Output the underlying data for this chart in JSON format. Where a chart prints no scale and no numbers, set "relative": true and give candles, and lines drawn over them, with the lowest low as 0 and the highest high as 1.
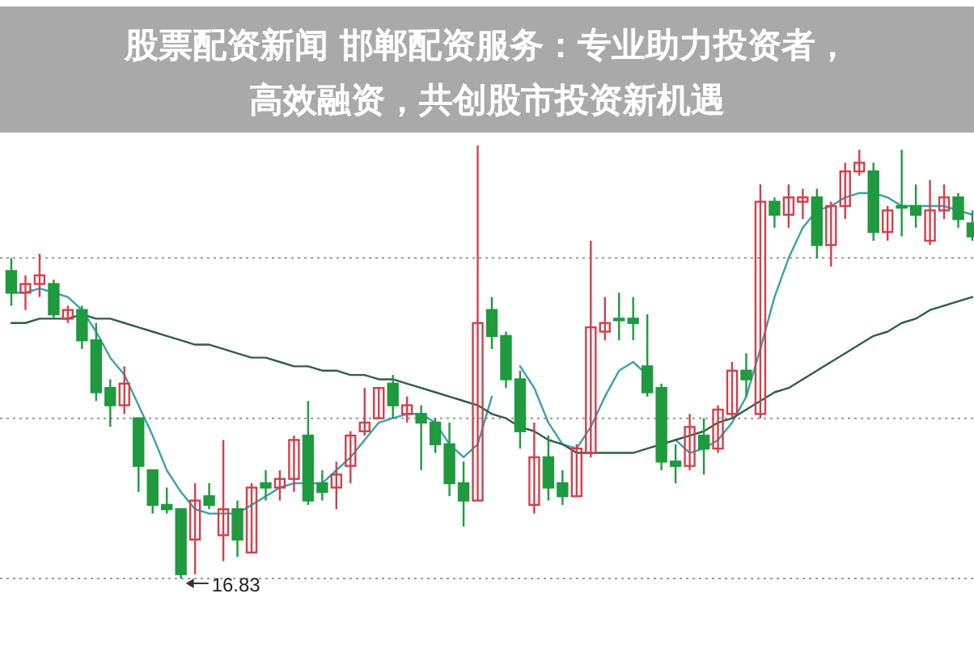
{
  "chart_data": {
    "type": "candlestick",
    "title": "股票配资新闻 邯郸配资服务：专业助力投资者，高效融资，共创股市投资新机遇",
    "relative": true,
    "ref_lines": [
      {
        "axis": "y",
        "value": 0,
        "color": "#999999",
        "line_style": "dotted"
      },
      {
        "axis": "y",
        "value": 0.37,
        "color": "#999999",
        "line_style": "dotted"
      },
      {
        "axis": "y",
        "value": 0.74,
        "color": "#999999",
        "line_style": "dotted"
      }
    ],
    "categories": [
      null,
      null,
      null,
      null,
      null,
      null,
      null,
      null,
      null,
      null,
      null,
      null,
      null,
      null,
      null,
      null,
      null,
      null,
      null,
      null,
      null,
      null,
      null,
      null,
      null,
      null,
      null,
      null,
      null,
      null,
      null,
      null,
      null,
      null,
      null,
      null,
      null,
      null,
      null,
      null,
      null,
      null,
      null,
      null,
      null,
      null,
      null,
      null,
      null,
      null,
      null,
      null,
      null,
      null,
      null,
      null,
      null,
      null,
      null,
      null,
      null,
      null,
      null,
      null,
      null,
      null,
      null,
      null,
      null
    ],
    "ohlc": [
      [
        0.71,
        0.74,
        0.63,
        0.66
      ],
      [
        0.66,
        0.7,
        0.62,
        0.68
      ],
      [
        0.68,
        0.75,
        0.65,
        0.7
      ],
      [
        0.68,
        0.69,
        0.6,
        0.61
      ],
      [
        0.6,
        0.63,
        0.59,
        0.62
      ],
      [
        0.62,
        0.63,
        0.53,
        0.55
      ],
      [
        0.55,
        0.59,
        0.41,
        0.43
      ],
      [
        0.44,
        0.46,
        0.35,
        0.4
      ],
      [
        0.4,
        0.49,
        0.38,
        0.45
      ],
      [
        0.37,
        0.37,
        0.2,
        0.26
      ],
      [
        0.25,
        0.25,
        0.15,
        0.17
      ],
      [
        0.17,
        0.21,
        0.15,
        0.16
      ],
      [
        0.16,
        0.16,
        0,
        0.01
      ],
      [
        0.09,
        0.22,
        0.01,
        0.18
      ],
      [
        0.19,
        0.22,
        0.16,
        0.17
      ],
      [
        0.1,
        0.32,
        0.04,
        0.16
      ],
      [
        0.16,
        0.18,
        0.05,
        0.09
      ],
      [
        0.06,
        0.22,
        0.06,
        0.21
      ],
      [
        0.22,
        0.25,
        0.18,
        0.21
      ],
      [
        0.21,
        0.25,
        0.18,
        0.23
      ],
      [
        0.23,
        0.33,
        0.2,
        0.32
      ],
      [
        0.33,
        0.41,
        0.17,
        0.18
      ],
      [
        0.22,
        0.25,
        0.18,
        0.2
      ],
      [
        0.21,
        0.27,
        0.16,
        0.24
      ],
      [
        0.26,
        0.34,
        0.22,
        0.33
      ],
      [
        0.34,
        0.44,
        0.33,
        0.36
      ],
      [
        0.37,
        0.44,
        0.37,
        0.44
      ],
      [
        0.45,
        0.47,
        0.37,
        0.4
      ],
      [
        0.38,
        0.42,
        0.36,
        0.4
      ],
      [
        0.38,
        0.4,
        0.25,
        0.36
      ],
      [
        0.36,
        0.37,
        0.29,
        0.31
      ],
      [
        0.31,
        0.36,
        0.19,
        0.22
      ],
      [
        0.22,
        0.27,
        0.12,
        0.18
      ],
      [
        0.18,
        1.0,
        0.18,
        0.59
      ],
      [
        0.62,
        0.65,
        0.53,
        0.56
      ],
      [
        0.56,
        0.57,
        0.44,
        0.46
      ],
      [
        0.46,
        0.48,
        0.3,
        0.34
      ],
      [
        0.17,
        0.36,
        0.15,
        0.28
      ],
      [
        0.28,
        0.33,
        0.18,
        0.21
      ],
      [
        0.22,
        0.25,
        0.17,
        0.19
      ],
      [
        0.19,
        0.31,
        0.19,
        0.3
      ],
      [
        0.29,
        0.78,
        0.28,
        0.58
      ],
      [
        0.57,
        0.65,
        0.55,
        0.59
      ],
      [
        0.6,
        0.66,
        0.55,
        0.6
      ],
      [
        0.6,
        0.65,
        0.55,
        0.59
      ],
      [
        0.49,
        0.61,
        0.42,
        0.43
      ],
      [
        0.44,
        0.45,
        0.25,
        0.27
      ],
      [
        0.27,
        0.31,
        0.22,
        0.26
      ],
      [
        0.26,
        0.38,
        0.25,
        0.35
      ],
      [
        0.33,
        0.37,
        0.24,
        0.3
      ],
      [
        0.3,
        0.4,
        0.29,
        0.39
      ],
      [
        0.38,
        0.5,
        0.37,
        0.48
      ],
      [
        0.48,
        0.52,
        0.42,
        0.46
      ],
      [
        0.38,
        0.91,
        0.37,
        0.87
      ],
      [
        0.87,
        0.88,
        0.81,
        0.84
      ],
      [
        0.84,
        0.91,
        0.81,
        0.88
      ],
      [
        0.87,
        0.9,
        0.83,
        0.88
      ],
      [
        0.88,
        0.9,
        0.74,
        0.77
      ],
      [
        0.77,
        0.87,
        0.72,
        0.86
      ],
      [
        0.86,
        0.96,
        0.83,
        0.94
      ],
      [
        0.94,
        0.99,
        0.93,
        0.96
      ],
      [
        0.94,
        0.96,
        0.78,
        0.8
      ],
      [
        0.8,
        0.86,
        0.78,
        0.85
      ],
      [
        0.86,
        0.99,
        0.79,
        0.86
      ],
      [
        0.86,
        0.91,
        0.81,
        0.84
      ],
      [
        0.78,
        0.92,
        0.77,
        0.85
      ],
      [
        0.85,
        0.91,
        0.83,
        0.88
      ],
      [
        0.88,
        0.89,
        0.81,
        0.83
      ],
      [
        0.82,
        0.85,
        0.78,
        0.79
      ]
    ],
    "colors": [
      "#1f9a3f",
      "#d0404c",
      "#d0404c",
      "#1f9a3f",
      "#d0404c",
      "#1f9a3f",
      "#1f9a3f",
      "#1f9a3f",
      "#d0404c",
      "#1f9a3f",
      "#1f9a3f",
      "#1f9a3f",
      "#1f9a3f",
      "#d0404c",
      "#1f9a3f",
      "#d0404c",
      "#1f9a3f",
      "#d0404c",
      "#1f9a3f",
      "#d0404c",
      "#d0404c",
      "#1f9a3f",
      "#1f9a3f",
      "#d0404c",
      "#d0404c",
      "#d0404c",
      "#d0404c",
      "#1f9a3f",
      "#d0404c",
      "#1f9a3f",
      "#1f9a3f",
      "#1f9a3f",
      "#1f9a3f",
      "#d0404c",
      "#1f9a3f",
      "#1f9a3f",
      "#1f9a3f",
      "#d0404c",
      "#1f9a3f",
      "#1f9a3f",
      "#d0404c",
      "#d0404c",
      "#d0404c",
      "#1f9a3f",
      "#1f9a3f",
      "#1f9a3f",
      "#1f9a3f",
      "#1f9a3f",
      "#d0404c",
      "#1f9a3f",
      "#d0404c",
      "#d0404c",
      "#1f9a3f",
      "#d0404c",
      "#1f9a3f",
      "#d0404c",
      "#d0404c",
      "#1f9a3f",
      "#d0404c",
      "#d0404c",
      "#d0404c",
      "#1f9a3f",
      "#d0404c",
      "#1f9a3f",
      "#1f9a3f",
      "#d0404c",
      "#d0404c",
      "#1f9a3f",
      "#1f9a3f"
    ],
    "series": [
      {
        "type": "line",
        "color": "#3a9fb0",
        "values": [
          0.66,
          0.66,
          0.67,
          0.66,
          0.65,
          0.62,
          0.57,
          0.51,
          0.47,
          0.4,
          0.33,
          0.25,
          0.2,
          0.16,
          0.15,
          0.15,
          0.15,
          0.17,
          0.19,
          0.21,
          0.22,
          0.22,
          0.22,
          0.25,
          0.28,
          0.32,
          0.36,
          0.37,
          0.38,
          0.38,
          0.36,
          0.31,
          0.28,
          0.31,
          0.42,
          null,
          0.49,
          0.44,
          0.36,
          0.31,
          0.3,
          0.35,
          0.42,
          0.48,
          0.5,
          0.47,
          null,
          0.32,
          0.29,
          0.3,
          0.32,
          0.36,
          0.42,
          0.53,
          0.65,
          0.74,
          0.81,
          0.85,
          0.86,
          0.88,
          0.89,
          0.89,
          0.88,
          0.86,
          0.86,
          0.86,
          0.86,
          0.85,
          0.84
        ]
      },
      {
        "type": "line",
        "color": "#2f5e48",
        "values": [
          0.59,
          0.59,
          0.6,
          0.6,
          0.6,
          0.61,
          0.6,
          0.6,
          0.59,
          0.58,
          0.57,
          0.56,
          0.55,
          0.54,
          0.54,
          0.53,
          0.52,
          0.51,
          0.51,
          0.5,
          0.49,
          0.49,
          0.48,
          0.48,
          0.47,
          0.47,
          0.46,
          0.46,
          0.45,
          0.44,
          0.43,
          0.42,
          0.41,
          0.4,
          0.38,
          0.37,
          0.35,
          0.34,
          0.32,
          0.31,
          0.29,
          0.29,
          0.29,
          0.29,
          0.29,
          0.3,
          0.31,
          0.32,
          0.33,
          0.34,
          0.36,
          0.37,
          0.39,
          0.41,
          0.43,
          0.44,
          0.46,
          0.48,
          0.5,
          0.52,
          0.54,
          0.56,
          0.57,
          0.59,
          0.6,
          0.62,
          0.63,
          0.64,
          0.65
        ]
      }
    ],
    "annotations": [
      "16.83"
    ]
  }
}
